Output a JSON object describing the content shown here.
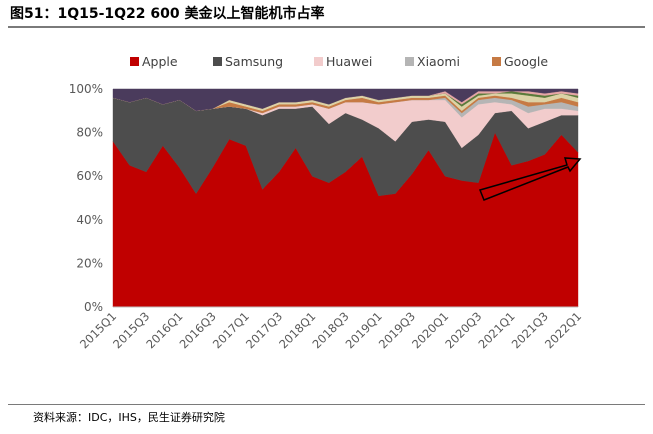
{
  "title": "图51：1Q15-1Q22 600 美金以上智能机市占率",
  "source": "资料来源：IDC，IHS，民生证券研究院",
  "chart_data": {
    "type": "area",
    "stacked": true,
    "title": "图51：1Q15-1Q22 600 美金以上智能机市占率",
    "xlabel": "",
    "ylabel": "",
    "ylim": [
      0,
      100
    ],
    "yticks": [
      "0%",
      "20%",
      "40%",
      "60%",
      "80%",
      "100%"
    ],
    "legend_position": "top",
    "x": [
      "2015Q1",
      "2015Q2",
      "2015Q3",
      "2015Q4",
      "2016Q1",
      "2016Q2",
      "2016Q3",
      "2016Q4",
      "2017Q1",
      "2017Q2",
      "2017Q3",
      "2017Q4",
      "2018Q1",
      "2018Q2",
      "2018Q3",
      "2018Q4",
      "2019Q1",
      "2019Q2",
      "2019Q3",
      "2019Q4",
      "2020Q1",
      "2020Q2",
      "2020Q3",
      "2020Q4",
      "2021Q1",
      "2021Q2",
      "2021Q3",
      "2021Q4",
      "2022Q1"
    ],
    "tick_labels": [
      "2015Q1",
      "2015Q3",
      "2016Q1",
      "2016Q3",
      "2017Q1",
      "2017Q3",
      "2018Q1",
      "2018Q3",
      "2019Q1",
      "2019Q3",
      "2020Q1",
      "2020Q3",
      "2021Q1",
      "2021Q3",
      "2022Q1"
    ],
    "series": [
      {
        "name": "Apple",
        "color": "#c00000",
        "values": [
          76,
          65,
          62,
          74,
          64,
          52,
          64,
          77,
          74,
          54,
          62,
          73,
          60,
          57,
          62,
          69,
          51,
          52,
          61,
          72,
          60,
          58,
          57,
          80,
          65,
          67,
          70,
          79,
          71
        ]
      },
      {
        "name": "Samsung",
        "color": "#4d4d4d",
        "values": [
          20,
          29,
          34,
          19,
          31,
          38,
          27,
          15,
          17,
          34,
          29,
          18,
          32,
          27,
          27,
          17,
          31,
          24,
          24,
          14,
          25,
          15,
          22,
          9,
          25,
          15,
          15,
          9,
          17
        ]
      },
      {
        "name": "Huawei",
        "color": "#f2cccc",
        "values": [
          0,
          0,
          0,
          0,
          0,
          0,
          0,
          0,
          0,
          1,
          1,
          1,
          1,
          7,
          5,
          8,
          11,
          18,
          10,
          9,
          10,
          14,
          14,
          5,
          3,
          7,
          6,
          3,
          2
        ]
      },
      {
        "name": "Xiaomi",
        "color": "#b5b5b5",
        "values": [
          0,
          0,
          0,
          0,
          0,
          0,
          0,
          0,
          0,
          0,
          0,
          0,
          0,
          0,
          0,
          0,
          0,
          0,
          0,
          0,
          1,
          2,
          2,
          2,
          2,
          3,
          2,
          3,
          2
        ]
      },
      {
        "name": "Google",
        "color": "#c67a44",
        "values": [
          0,
          0,
          0,
          0,
          0,
          0,
          0,
          2,
          1,
          1,
          1,
          1,
          1,
          1,
          1,
          2,
          1,
          1,
          1,
          1,
          1,
          1,
          1,
          1,
          1,
          2,
          1,
          2,
          2
        ]
      },
      {
        "name": "",
        "color": "#dcd2a6",
        "values": [
          0,
          0,
          0,
          0,
          0,
          0,
          0,
          1,
          1,
          1,
          1,
          1,
          1,
          1,
          1,
          1,
          1,
          1,
          1,
          1,
          1,
          2,
          1,
          1,
          2,
          3,
          2,
          2,
          2
        ]
      },
      {
        "name": "",
        "color": "#5a7a3a",
        "values": [
          0,
          0,
          0,
          0,
          0,
          0,
          0,
          0,
          0,
          0,
          0,
          0,
          0,
          0,
          0,
          0,
          0,
          0,
          0,
          0,
          0,
          1,
          1,
          0,
          1,
          1,
          1,
          0,
          1
        ]
      },
      {
        "name": "",
        "color": "#e6a6a6",
        "values": [
          0,
          0,
          0,
          0,
          0,
          0,
          0,
          0,
          0,
          0,
          0,
          0,
          0,
          0,
          0,
          0,
          0,
          0,
          0,
          0,
          1,
          1,
          1,
          1,
          0,
          1,
          1,
          1,
          1
        ]
      },
      {
        "name": "",
        "color": "#4a3b5c",
        "values": [
          4,
          6,
          4,
          7,
          5,
          10,
          9,
          5,
          7,
          9,
          6,
          6,
          5,
          7,
          4,
          3,
          5,
          4,
          3,
          3,
          1,
          6,
          1,
          1,
          1,
          1,
          2,
          1,
          2
        ]
      }
    ]
  },
  "annotation": {
    "type": "arrow",
    "meaning": "upward trend in Apple share",
    "color": "#000000"
  }
}
